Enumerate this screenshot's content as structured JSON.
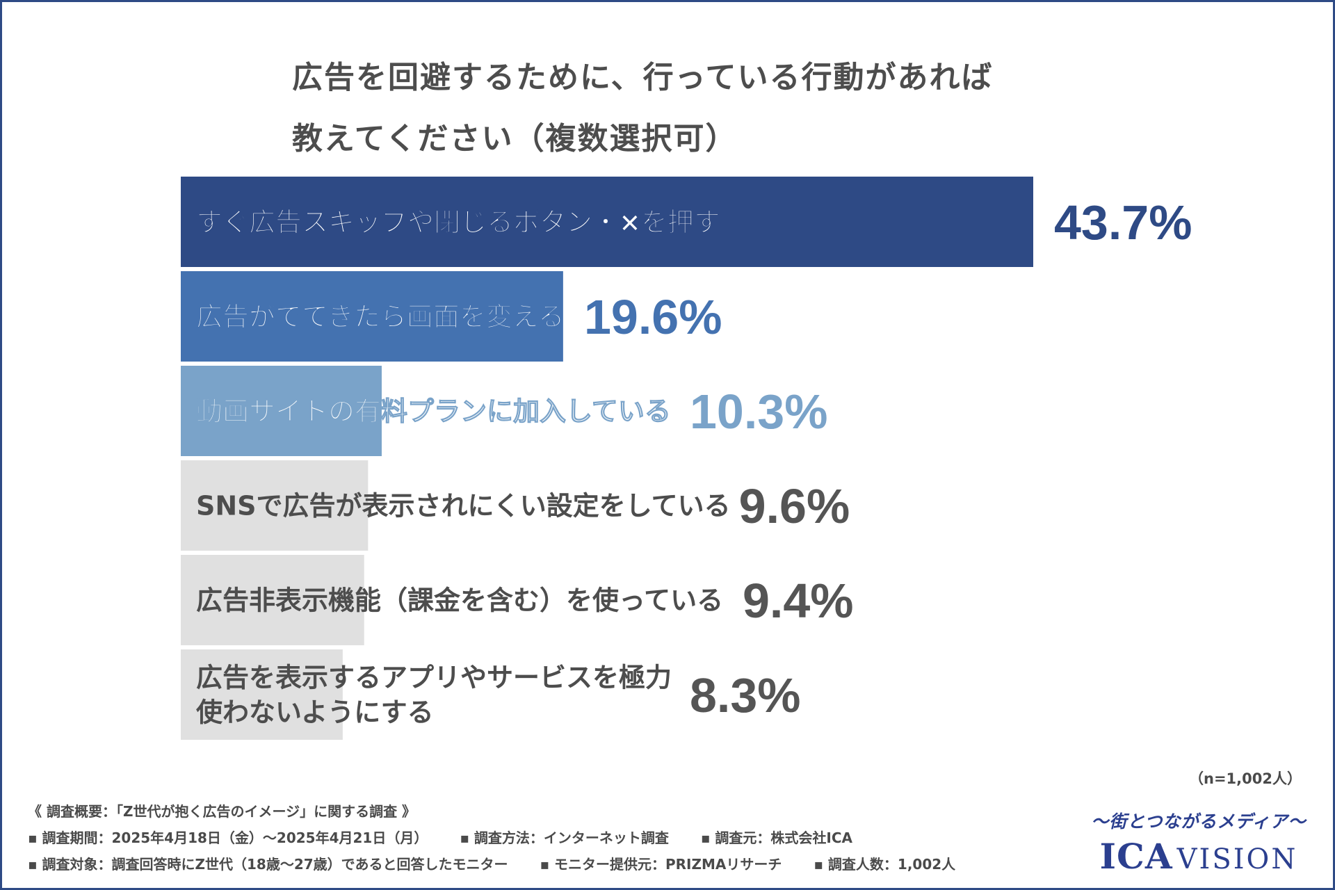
{
  "title": {
    "line1": "広告を回避するために、行っている行動があれば",
    "line2": "教えてください（複数選択可）"
  },
  "chart_data": {
    "type": "bar",
    "orientation": "horizontal",
    "title": "広告を回避するために、行っている行動があれば教えてください（複数選択可）",
    "categories": [
      [
        "すぐ広告スキップや閉じるボタン・×を押す"
      ],
      [
        "広告がでてきたら画面を変える"
      ],
      [
        "動画サイトの有料プランに加入している"
      ],
      [
        "SNSで広告が表示されにくい設定をしている"
      ],
      [
        "広告非表示機能（課金を含む）を使っている"
      ],
      [
        "広告を表示するアプリやサービスを極力",
        "使わないようにする"
      ]
    ],
    "values": [
      43.7,
      19.6,
      10.3,
      9.6,
      9.4,
      8.3
    ],
    "value_labels": [
      "43.7%",
      "19.6%",
      "10.3%",
      "9.6%",
      "9.4%",
      "8.3%"
    ],
    "unit": "%",
    "xlim": [
      0,
      43.7
    ],
    "grid": false,
    "legend": "none",
    "colors": {
      "bars": [
        "#2e4a85",
        "#4472b0",
        "#7aa3c9",
        "#e0e0e0",
        "#e0e0e0",
        "#e0e0e0"
      ],
      "values": [
        "#2e4a85",
        "#4472b0",
        "#7aa3c9",
        "#555555",
        "#555555",
        "#555555"
      ],
      "label_on_dark": "#ffffff",
      "label_on_light": "#4d4d4d"
    }
  },
  "footer": {
    "sample": "（n=1,002人）",
    "summary": "《 調査概要：「Z世代が抱く広告のイメージ」に関する調査 》",
    "period": "▪ 調査期間：2025年4月18日（金）〜2025年4月21日（月）",
    "method": "▪ 調査方法：インターネット調査",
    "source": "▪ 調査元：株式会社ICA",
    "target": "▪ 調査対象：調査回答時にZ世代（18歳〜27歳）であると回答したモニター",
    "provider": "▪ モニター提供元：PRIZMAリサーチ",
    "count": "▪ 調査人数：1,002人"
  },
  "brand": {
    "tagline": "〜街とつながるメディア〜",
    "logo_part1": "ICA",
    "logo_part2": "VISION"
  }
}
